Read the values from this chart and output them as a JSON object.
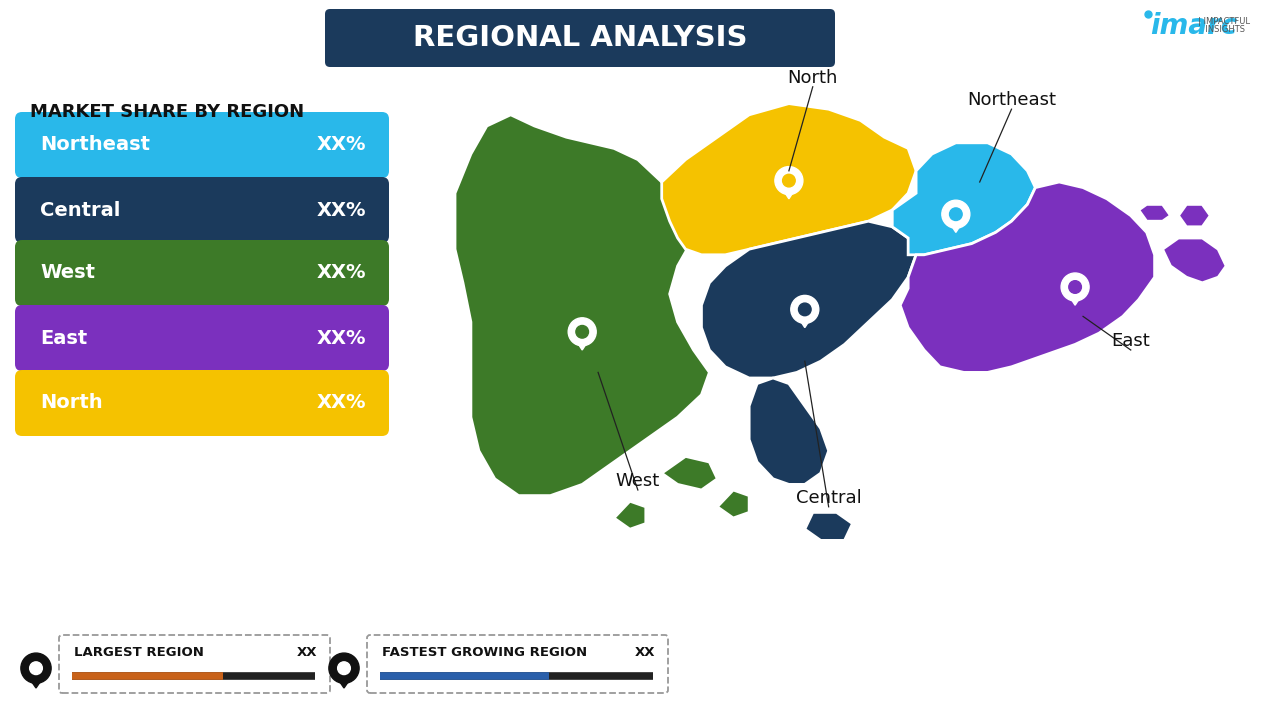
{
  "title": "REGIONAL ANALYSIS",
  "title_bg_color": "#1b3a5c",
  "title_text_color": "#ffffff",
  "background_color": "#ffffff",
  "subtitle": "MARKET SHARE BY REGION",
  "bars": [
    {
      "label": "Northeast",
      "value": "XX%",
      "color": "#29b8ea"
    },
    {
      "label": "Central",
      "value": "XX%",
      "color": "#1b3a5c"
    },
    {
      "label": "West",
      "value": "XX%",
      "color": "#3d7a28"
    },
    {
      "label": "East",
      "value": "XX%",
      "color": "#7b30be"
    },
    {
      "label": "North",
      "value": "XX%",
      "color": "#f5c200"
    }
  ],
  "region_colors": {
    "West": "#3d7a28",
    "North": "#f5c200",
    "Central": "#1b3a5c",
    "Northeast": "#29b8ea",
    "East": "#7b30be"
  },
  "footer_left_label": "LARGEST REGION",
  "footer_left_value": "XX",
  "footer_right_label": "FASTEST GROWING REGION",
  "footer_right_value": "XX",
  "footer_bar_left_color": "#c8621a",
  "footer_bar_right_color": "#2a5faa",
  "imarc_color": "#29b8ea",
  "imarc_dot_color": "#29b8ea"
}
